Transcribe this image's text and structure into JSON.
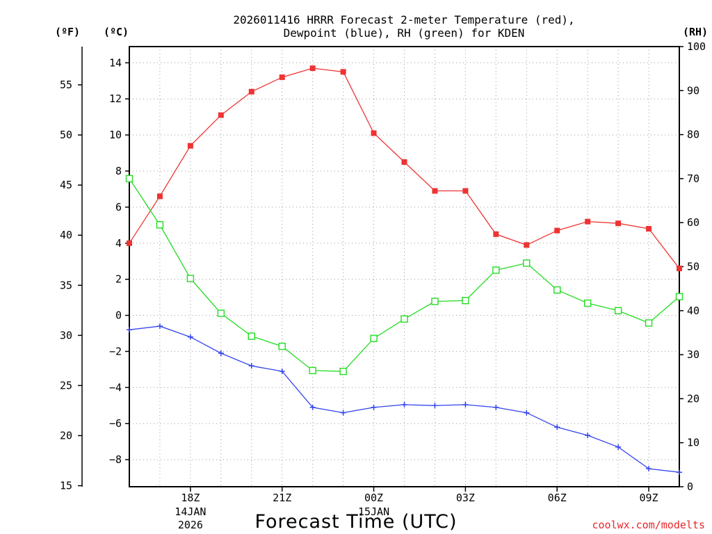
{
  "chart_data": {
    "type": "line",
    "title_lines": [
      "2026011416 HRRR Forecast 2-meter Temperature (red),",
      "Dewpoint (blue), RH (green) for KDEN"
    ],
    "xlabel": "Forecast Time (UTC)",
    "credit": "coolwx.com/modelts",
    "units": {
      "fahrenheit": "(ºF)",
      "celsius": "(ºC)",
      "rh": "(RH)"
    },
    "x_range_hours": [
      0,
      18
    ],
    "x_ticks": [
      {
        "hour": 2,
        "label": "18Z",
        "sub1": "14JAN",
        "sub2": "2026"
      },
      {
        "hour": 5,
        "label": "21Z",
        "sub1": "",
        "sub2": ""
      },
      {
        "hour": 8,
        "label": "00Z",
        "sub1": "15JAN",
        "sub2": ""
      },
      {
        "hour": 11,
        "label": "03Z",
        "sub1": "",
        "sub2": ""
      },
      {
        "hour": 14,
        "label": "06Z",
        "sub1": "",
        "sub2": ""
      },
      {
        "hour": 17,
        "label": "09Z",
        "sub1": "",
        "sub2": ""
      }
    ],
    "y_celsius": {
      "range": [
        -9.5,
        14.9
      ],
      "ticks": [
        14,
        12,
        10,
        8,
        6,
        4,
        2,
        0,
        -2,
        -4,
        -6,
        -8
      ]
    },
    "y_fahrenheit": {
      "ticks": [
        55,
        50,
        45,
        40,
        35,
        30,
        25,
        20,
        15
      ]
    },
    "y_rh": {
      "range": [
        0,
        100
      ],
      "ticks": [
        100,
        90,
        80,
        70,
        60,
        50,
        40,
        30,
        20,
        10,
        0
      ]
    },
    "grid": true,
    "series": [
      {
        "name": "2-meter Temperature",
        "color": "#ee3333",
        "axis": "celsius",
        "marker": "filled-square",
        "x": [
          0,
          1,
          2,
          3,
          4,
          5,
          6,
          7,
          8,
          9,
          10,
          11,
          12,
          13,
          14,
          15,
          16,
          17,
          18
        ],
        "values": [
          4.0,
          6.6,
          9.4,
          11.1,
          12.4,
          13.2,
          13.7,
          13.5,
          10.1,
          8.5,
          6.9,
          6.9,
          4.5,
          3.9,
          4.7,
          5.2,
          5.1,
          4.8,
          2.6
        ]
      },
      {
        "name": "Dewpoint",
        "color": "#3344ee",
        "axis": "celsius",
        "marker": "plus",
        "x": [
          0,
          1,
          2,
          3,
          4,
          5,
          6,
          7,
          8,
          9,
          10,
          11,
          12,
          13,
          14,
          15,
          16,
          17,
          18
        ],
        "values": [
          -0.8,
          -0.6,
          -1.2,
          -2.1,
          -2.8,
          -3.1,
          -5.1,
          -5.4,
          -5.1,
          -4.95,
          -5.0,
          -4.95,
          -5.1,
          -5.4,
          -6.2,
          -6.65,
          -7.3,
          -8.5,
          -8.7
        ]
      },
      {
        "name": "RH",
        "color": "#22dd22",
        "axis": "rh",
        "marker": "open-square",
        "x": [
          0,
          1,
          2,
          3,
          4,
          5,
          6,
          7,
          8,
          9,
          10,
          11,
          12,
          13,
          14,
          15,
          16,
          17,
          18
        ],
        "values": [
          70,
          59.5,
          47.3,
          39.4,
          34.2,
          31.9,
          26.4,
          26.2,
          33.7,
          38.1,
          42.1,
          42.3,
          49.2,
          50.8,
          44.7,
          41.7,
          40.0,
          37.2,
          43.2
        ]
      }
    ]
  }
}
